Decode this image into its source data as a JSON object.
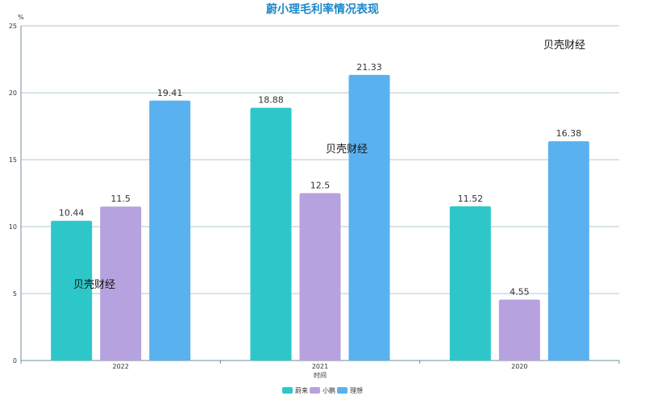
{
  "chart_data": {
    "type": "bar",
    "title": "蔚小理毛利率情况表现",
    "title_color": "#1e88c9",
    "ylabel": "%",
    "xlabel": "时间",
    "ylim": [
      0,
      25
    ],
    "yticks": [
      0,
      5,
      10,
      15,
      20,
      25
    ],
    "grid": true,
    "legend_position": "bottom-center",
    "categories": [
      "2022",
      "2021",
      "2020"
    ],
    "series": [
      {
        "name": "蔚来",
        "color": "#2ec7c9",
        "values": [
          10.44,
          18.88,
          11.52
        ],
        "labels": [
          "10.44",
          "18.88",
          "11.52"
        ]
      },
      {
        "name": "小鹏",
        "color": "#b6a2de",
        "values": [
          11.5,
          12.5,
          4.55
        ],
        "labels": [
          "11.5",
          "12.5",
          "4.55"
        ]
      },
      {
        "name": "理想",
        "color": "#5ab1ef",
        "values": [
          19.41,
          21.33,
          16.38
        ],
        "labels": [
          "19.41",
          "21.33",
          "16.38"
        ]
      }
    ]
  },
  "watermark": "贝壳财经"
}
